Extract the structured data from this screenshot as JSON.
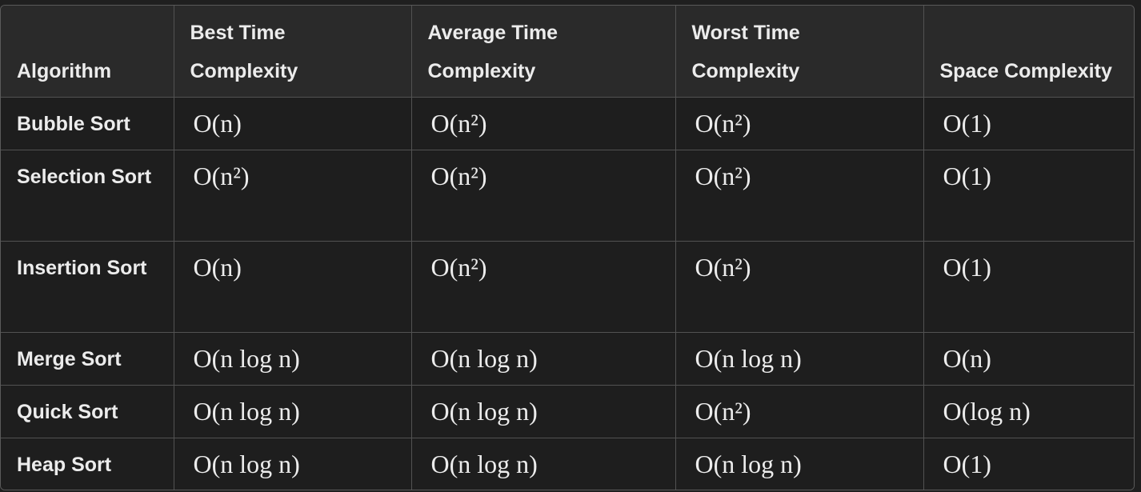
{
  "table": {
    "headers": [
      "Algorithm",
      "Best Time Complexity",
      "Average Time Complexity",
      "Worst Time Complexity",
      "Space Complexity"
    ],
    "rows": [
      {
        "algorithm": "Bubble Sort",
        "best": "O(n)",
        "average": "O(n²)",
        "worst": "O(n²)",
        "space": "O(1)"
      },
      {
        "algorithm": "Selection Sort",
        "best": "O(n²)",
        "average": "O(n²)",
        "worst": "O(n²)",
        "space": "O(1)"
      },
      {
        "algorithm": "Insertion Sort",
        "best": "O(n)",
        "average": "O(n²)",
        "worst": "O(n²)",
        "space": "O(1)"
      },
      {
        "algorithm": "Merge Sort",
        "best": "O(n log n)",
        "average": "O(n log n)",
        "worst": "O(n log n)",
        "space": "O(n)"
      },
      {
        "algorithm": "Quick Sort",
        "best": "O(n log n)",
        "average": "O(n log n)",
        "worst": "O(n²)",
        "space": "O(log n)"
      },
      {
        "algorithm": "Heap Sort",
        "best": "O(n log n)",
        "average": "O(n log n)",
        "worst": "O(n log n)",
        "space": "O(1)"
      }
    ]
  },
  "colors": {
    "background": "#1f1f1f",
    "header_background": "#2a2a2a",
    "text": "#ececec",
    "border": "#525252"
  }
}
